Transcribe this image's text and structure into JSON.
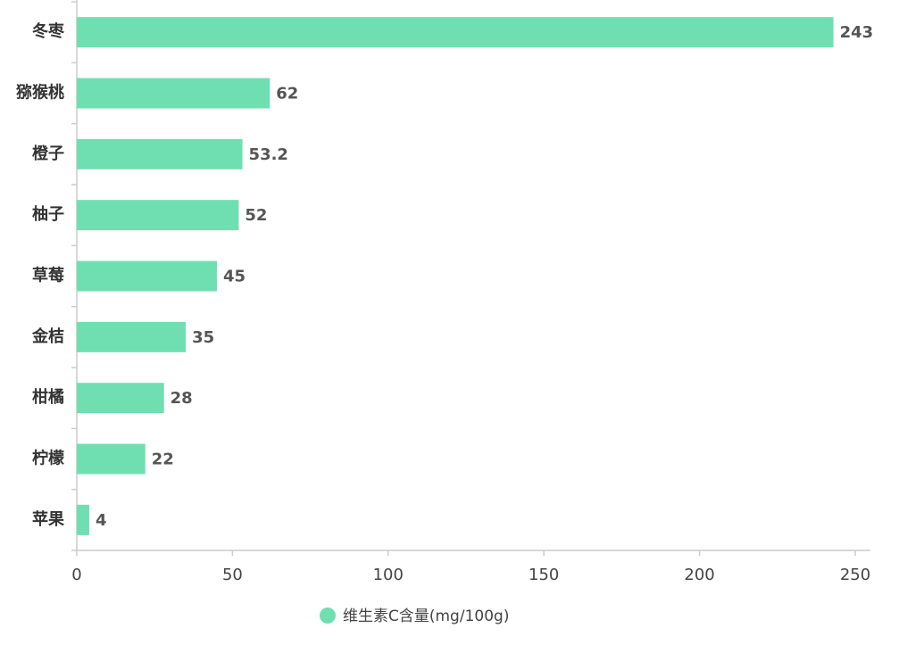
{
  "chart_data": {
    "type": "bar",
    "orientation": "horizontal",
    "categories": [
      "冬枣",
      "猕猴桃",
      "橙子",
      "柚子",
      "草莓",
      "金桔",
      "柑橘",
      "柠檬",
      "苹果"
    ],
    "series": [
      {
        "name": "维生素C含量(mg/100g)",
        "color": "#6fdfb2",
        "values": [
          243,
          62,
          53.2,
          52,
          45,
          35,
          28,
          22,
          4
        ]
      }
    ],
    "xlim": [
      0,
      250
    ],
    "xticks": [
      0,
      50,
      100,
      150,
      200,
      250
    ],
    "grid": false,
    "legend": "bottom"
  }
}
